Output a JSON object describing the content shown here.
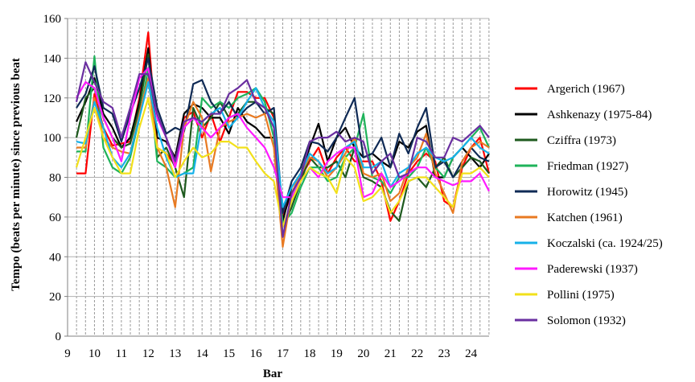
{
  "chart_data": {
    "type": "line",
    "xlabel": "Bar",
    "ylabel": "Tempo (beats per minute) since previous beat",
    "xlim": [
      9,
      24.67
    ],
    "ylim": [
      0,
      160
    ],
    "x_ticks": [
      "9",
      "10",
      "11",
      "12",
      "13",
      "14",
      "15",
      "16",
      "17",
      "18",
      "19",
      "20",
      "21",
      "22",
      "23",
      "24"
    ],
    "y_ticks": [
      "0",
      "20",
      "40",
      "60",
      "80",
      "100",
      "120",
      "140",
      "160"
    ],
    "grid": "vertical dashed lines at each beat, horizontal at major ticks",
    "legend_position": "right",
    "x": [
      9.33,
      9.67,
      10,
      10.33,
      10.67,
      11,
      11.33,
      11.67,
      12,
      12.33,
      12.67,
      13,
      13.33,
      13.67,
      14,
      14.33,
      14.67,
      15,
      15.33,
      15.67,
      16,
      16.33,
      16.67,
      17,
      17.33,
      17.67,
      18,
      18.33,
      18.67,
      19,
      19.33,
      19.67,
      20,
      20.33,
      20.67,
      21,
      21.33,
      21.67,
      22,
      22.33,
      22.67,
      23,
      23.33,
      23.67,
      24,
      24.33,
      24.67
    ],
    "series": [
      {
        "name": "Argerich (1967)",
        "color": "#ff0000",
        "values": [
          82,
          82,
          122,
          105,
          96,
          97,
          98,
          120,
          153,
          95,
          92,
          86,
          110,
          113,
          100,
          112,
          98,
          110,
          123,
          123,
          120,
          120,
          110,
          60,
          72,
          80,
          88,
          95,
          82,
          90,
          95,
          88,
          88,
          88,
          78,
          58,
          68,
          82,
          88,
          92,
          88,
          68,
          65,
          85,
          95,
          100,
          82
        ]
      },
      {
        "name": "Ashkenazy (1975-84)",
        "color": "#000000",
        "values": [
          108,
          118,
          130,
          112,
          105,
          95,
          100,
          118,
          145,
          100,
          98,
          90,
          112,
          117,
          115,
          110,
          110,
          102,
          115,
          108,
          105,
          100,
          100,
          58,
          75,
          82,
          95,
          107,
          88,
          100,
          105,
          95,
          90,
          92,
          88,
          85,
          98,
          95,
          103,
          106,
          80,
          80,
          90,
          95,
          90,
          85,
          92
        ]
      },
      {
        "name": "Cziffra (1973)",
        "color": "#1e5a1e",
        "values": [
          100,
          120,
          125,
          110,
          100,
          95,
          97,
          115,
          142,
          90,
          95,
          85,
          70,
          115,
          105,
          110,
          118,
          110,
          112,
          118,
          118,
          115,
          112,
          55,
          65,
          78,
          90,
          85,
          85,
          88,
          80,
          95,
          80,
          78,
          75,
          63,
          58,
          78,
          80,
          75,
          85,
          90,
          80,
          85,
          90,
          88,
          82
        ]
      },
      {
        "name": "Friedman (1927)",
        "color": "#1fb35a",
        "values": [
          93,
          93,
          141,
          95,
          85,
          82,
          90,
          110,
          135,
          88,
          85,
          80,
          82,
          85,
          120,
          115,
          118,
          115,
          120,
          122,
          125,
          118,
          100,
          57,
          62,
          75,
          85,
          85,
          78,
          80,
          90,
          95,
          112,
          80,
          78,
          72,
          80,
          80,
          85,
          95,
          85,
          80,
          90,
          95,
          100,
          105,
          95
        ]
      },
      {
        "name": "Horowitz (1945)",
        "color": "#0f2a55",
        "values": [
          115,
          122,
          136,
          115,
          112,
          98,
          112,
          125,
          140,
          115,
          102,
          105,
          103,
          127,
          129,
          118,
          112,
          118,
          110,
          115,
          118,
          112,
          115,
          62,
          78,
          85,
          98,
          97,
          93,
          100,
          110,
          120,
          90,
          92,
          100,
          85,
          102,
          92,
          105,
          115,
          85,
          88,
          80,
          88,
          95,
          90,
          88
        ]
      },
      {
        "name": "Katchen (1961)",
        "color": "#e87a22",
        "values": [
          95,
          95,
          120,
          100,
          95,
          93,
          92,
          112,
          130,
          95,
          85,
          65,
          105,
          118,
          110,
          83,
          105,
          108,
          110,
          112,
          110,
          112,
          95,
          45,
          72,
          82,
          90,
          88,
          80,
          85,
          92,
          100,
          82,
          80,
          82,
          68,
          72,
          85,
          90,
          102,
          82,
          72,
          62,
          88,
          95,
          98,
          95
        ]
      },
      {
        "name": "Koczalski (ca. 1924/25)",
        "color": "#16b1e8",
        "values": [
          98,
          97,
          118,
          105,
          90,
          85,
          92,
          110,
          128,
          105,
          90,
          80,
          82,
          82,
          108,
          112,
          115,
          105,
          110,
          118,
          125,
          115,
          108,
          65,
          75,
          82,
          92,
          88,
          82,
          85,
          95,
          98,
          85,
          85,
          88,
          75,
          82,
          85,
          92,
          95,
          90,
          88,
          90,
          95,
          100,
          95,
          92
        ]
      },
      {
        "name": "Paderewski (1937)",
        "color": "#ff1aff",
        "values": [
          120,
          128,
          125,
          110,
          100,
          88,
          110,
          130,
          135,
          110,
          100,
          85,
          105,
          110,
          105,
          100,
          105,
          110,
          112,
          105,
          100,
          95,
          85,
          70,
          70,
          78,
          85,
          80,
          88,
          92,
          95,
          95,
          70,
          72,
          82,
          75,
          78,
          82,
          85,
          85,
          80,
          78,
          76,
          78,
          78,
          82,
          73
        ]
      },
      {
        "name": "Pollini (1975)",
        "color": "#f2e01a",
        "values": [
          85,
          100,
          115,
          100,
          90,
          82,
          82,
          105,
          120,
          95,
          92,
          80,
          88,
          95,
          90,
          92,
          98,
          98,
          95,
          95,
          88,
          82,
          78,
          55,
          68,
          78,
          85,
          82,
          80,
          72,
          90,
          85,
          68,
          70,
          75,
          62,
          68,
          78,
          80,
          80,
          75,
          70,
          65,
          82,
          82,
          85,
          80
        ]
      },
      {
        "name": "Solomon (1932)",
        "color": "#6a2fa0",
        "values": [
          118,
          138,
          128,
          118,
          115,
          100,
          115,
          132,
          132,
          112,
          100,
          88,
          108,
          110,
          108,
          112,
          112,
          122,
          125,
          129,
          118,
          115,
          105,
          50,
          72,
          80,
          98,
          100,
          100,
          103,
          98,
          100,
          98,
          82,
          88,
          92,
          80,
          82,
          100,
          98,
          90,
          90,
          100,
          98,
          102,
          106,
          100
        ]
      }
    ]
  }
}
